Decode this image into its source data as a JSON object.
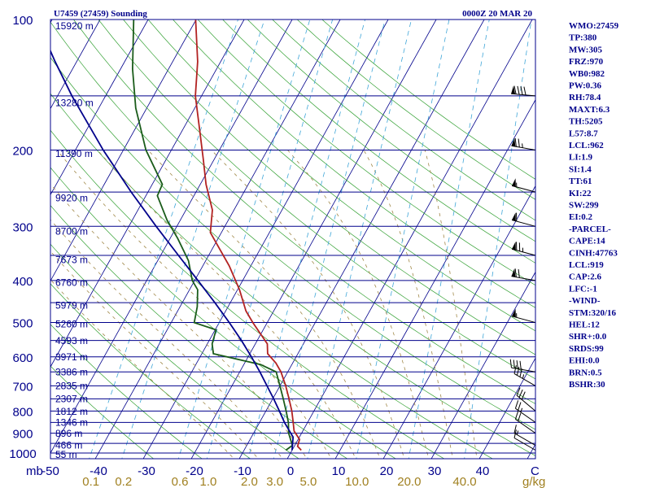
{
  "header": {
    "station": "U7459 (27459) Sounding",
    "datetime": "0000Z 20 MAR 20"
  },
  "chart_data": {
    "type": "line",
    "skew_t": true,
    "pressure_axis": {
      "scale": "log",
      "range_hpa": [
        1000,
        100
      ],
      "tick_labels": [
        "100",
        "200",
        "300",
        "400",
        "500",
        "600",
        "700",
        "800",
        "900",
        "1000"
      ],
      "unit_label": "mb"
    },
    "temperature_axis": {
      "range_c": [
        -50,
        50
      ],
      "tick_labels": [
        "-50",
        "-40",
        "-30",
        "-20",
        "-10",
        "0",
        "10",
        "20",
        "30",
        "40"
      ],
      "unit_label": "C"
    },
    "mixing_ratio_labels": [
      "0.1",
      "0.2",
      "0.6",
      "1.0",
      "2.0",
      "3.0",
      "5.0",
      "10.0",
      "20.0",
      "40.0"
    ],
    "mixing_ratio_unit": "g/kg",
    "heights": [
      {
        "p": 1005,
        "label": "55 m"
      },
      {
        "p": 955,
        "label": "466 m"
      },
      {
        "p": 897,
        "label": "896 m"
      },
      {
        "p": 847,
        "label": "1346 m"
      },
      {
        "p": 798,
        "label": "1812 m"
      },
      {
        "p": 747,
        "label": "2307 m"
      },
      {
        "p": 697,
        "label": "2835 m"
      },
      {
        "p": 648,
        "label": "3386 m"
      },
      {
        "p": 598,
        "label": "3971 m"
      },
      {
        "p": 549,
        "label": "4593 m"
      },
      {
        "p": 502,
        "label": "5260 m"
      },
      {
        "p": 455,
        "label": "5979 m"
      },
      {
        "p": 403,
        "label": "6760 m"
      },
      {
        "p": 357,
        "label": "7673 m"
      },
      {
        "p": 307,
        "label": "8700 m"
      },
      {
        "p": 257,
        "label": "9920 m"
      },
      {
        "p": 203,
        "label": "11390 m"
      },
      {
        "p": 155,
        "label": "13280 m"
      },
      {
        "p": 103,
        "label": "15920 m"
      }
    ],
    "series": [
      {
        "role": "temperature",
        "color": "#b22222",
        "points": [
          {
            "p": 985,
            "t": 1.9
          },
          {
            "p": 965,
            "t": 0.7
          },
          {
            "p": 930,
            "t": 0.3
          },
          {
            "p": 890,
            "t": -1.8
          },
          {
            "p": 850,
            "t": -3.0
          },
          {
            "p": 800,
            "t": -4.6
          },
          {
            "p": 750,
            "t": -6.6
          },
          {
            "p": 700,
            "t": -8.8
          },
          {
            "p": 650,
            "t": -11.4
          },
          {
            "p": 620,
            "t": -13.5
          },
          {
            "p": 590,
            "t": -16.3
          },
          {
            "p": 560,
            "t": -17.5
          },
          {
            "p": 500,
            "t": -23.0
          },
          {
            "p": 470,
            "t": -25.8
          },
          {
            "p": 420,
            "t": -29.6
          },
          {
            "p": 370,
            "t": -34.5
          },
          {
            "p": 310,
            "t": -42.3
          },
          {
            "p": 275,
            "t": -44.5
          },
          {
            "p": 240,
            "t": -48.8
          },
          {
            "p": 210,
            "t": -52.3
          },
          {
            "p": 180,
            "t": -56.4
          },
          {
            "p": 150,
            "t": -61.3
          },
          {
            "p": 125,
            "t": -64.8
          },
          {
            "p": 100,
            "t": -70.1
          }
        ]
      },
      {
        "role": "dewpoint",
        "color": "#1a5c1a",
        "points": [
          {
            "p": 985,
            "t": -1.3
          },
          {
            "p": 960,
            "t": -0.5
          },
          {
            "p": 900,
            "t": -2.7
          },
          {
            "p": 850,
            "t": -4.0
          },
          {
            "p": 800,
            "t": -5.8
          },
          {
            "p": 750,
            "t": -7.8
          },
          {
            "p": 700,
            "t": -10.0
          },
          {
            "p": 650,
            "t": -12.4
          },
          {
            "p": 625,
            "t": -16.5
          },
          {
            "p": 590,
            "t": -27.6
          },
          {
            "p": 560,
            "t": -29.0
          },
          {
            "p": 520,
            "t": -29.8
          },
          {
            "p": 500,
            "t": -35.2
          },
          {
            "p": 460,
            "t": -36.4
          },
          {
            "p": 420,
            "t": -38.3
          },
          {
            "p": 400,
            "t": -40.5
          },
          {
            "p": 360,
            "t": -43.6
          },
          {
            "p": 320,
            "t": -48.4
          },
          {
            "p": 290,
            "t": -52.8
          },
          {
            "p": 255,
            "t": -57.6
          },
          {
            "p": 240,
            "t": -57.9
          },
          {
            "p": 200,
            "t": -65.3
          },
          {
            "p": 160,
            "t": -72.3
          },
          {
            "p": 130,
            "t": -77.5
          },
          {
            "p": 100,
            "t": -83.0
          }
        ]
      },
      {
        "role": "parcel",
        "color": "#00008b",
        "points": [
          {
            "p": 985,
            "t": 0.0
          },
          {
            "p": 919,
            "t": -1.3
          },
          {
            "p": 850,
            "t": -4.8
          },
          {
            "p": 800,
            "t": -7.2
          },
          {
            "p": 750,
            "t": -9.8
          },
          {
            "p": 700,
            "t": -12.7
          },
          {
            "p": 650,
            "t": -15.8
          },
          {
            "p": 600,
            "t": -19.3
          },
          {
            "p": 550,
            "t": -23.3
          },
          {
            "p": 500,
            "t": -27.9
          },
          {
            "p": 450,
            "t": -33.2
          },
          {
            "p": 400,
            "t": -39.3
          },
          {
            "p": 350,
            "t": -46.3
          },
          {
            "p": 300,
            "t": -54.3
          },
          {
            "p": 250,
            "t": -63.5
          },
          {
            "p": 200,
            "t": -74.2
          },
          {
            "p": 150,
            "t": -87.0
          },
          {
            "p": 125,
            "t": -94.5
          },
          {
            "p": 110,
            "t": -99.5
          }
        ]
      }
    ],
    "wind_barbs": [
      {
        "p": 985,
        "dir": 300,
        "spd": 10
      },
      {
        "p": 960,
        "dir": 300,
        "spd": 15
      },
      {
        "p": 900,
        "dir": 305,
        "spd": 20
      },
      {
        "p": 850,
        "dir": 305,
        "spd": 25
      },
      {
        "p": 800,
        "dir": 310,
        "spd": 30
      },
      {
        "p": 700,
        "dir": 300,
        "spd": 35
      },
      {
        "p": 650,
        "dir": 280,
        "spd": 40
      },
      {
        "p": 500,
        "dir": 285,
        "spd": 55
      },
      {
        "p": 400,
        "dir": 280,
        "spd": 70
      },
      {
        "p": 350,
        "dir": 285,
        "spd": 75
      },
      {
        "p": 300,
        "dir": 285,
        "spd": 60
      },
      {
        "p": 250,
        "dir": 285,
        "spd": 55
      },
      {
        "p": 200,
        "dir": 280,
        "spd": 75
      },
      {
        "p": 150,
        "dir": 275,
        "spd": 90
      }
    ]
  },
  "indices": [
    "WMO:27459",
    "TP:380",
    "MW:305",
    "FRZ:970",
    "WB0:982",
    "PW:0.36",
    "RH:78.4",
    "MAXT:6.3",
    "TH:5205",
    "L57:8.7",
    "LCL:962",
    "LI:1.9",
    "SI:1.4",
    "TT:61",
    "KI:22",
    "SW:299",
    "EI:0.2",
    "-PARCEL-",
    "CAPE:14",
    "CINH:47763",
    "LCL:919",
    "CAP:2.6",
    "LFC:-1",
    "-WIND-",
    "STM:320/16",
    "HEL:12",
    "SHR+:0.0",
    "SRDS:99",
    "EHI:0.0",
    "BRN:0.5",
    "BSHR:30"
  ]
}
